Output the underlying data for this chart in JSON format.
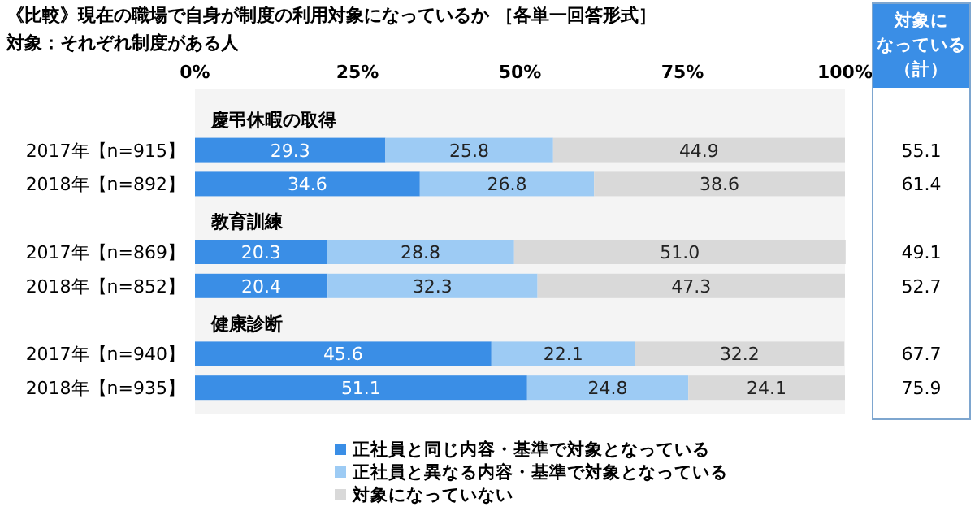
{
  "chart_data": [
    {
      "type": "bar",
      "orientation": "horizontal",
      "stacked": true,
      "title": "《比較》現在の職場で自身が制度の利用対象になっているか ［各単一回答形式］",
      "subtitle": "対象：それぞれ制度がある人",
      "categories": [
        "慶弔休暇の取得",
        "2017年【n=915】",
        "2018年【n=892】",
        "教育訓練",
        "2017年【n=869】",
        "2018年【n=852】",
        "健康診断",
        "2017年【n=940】",
        "2018年【n=935】"
      ],
      "series": [
        {
          "name": "正社員と同じ内容・基準で対象となっている",
          "color": "#3a8ee6",
          "values": [
            null,
            29.3,
            34.6,
            null,
            20.3,
            20.4,
            null,
            45.6,
            51.1
          ],
          "value_labels": [
            null,
            "29.3",
            "34.6",
            null,
            "20.3",
            "20.4",
            null,
            "45.6",
            "51.1"
          ]
        },
        {
          "name": "正社員と異なる内容・基準で対象となっている",
          "color": "#9dcbf4",
          "values": [
            null,
            25.8,
            26.8,
            null,
            28.8,
            32.3,
            null,
            22.1,
            24.8
          ],
          "value_labels": [
            null,
            "25.8",
            "26.8",
            null,
            "28.8",
            "32.3",
            null,
            "22.1",
            "24.8"
          ]
        },
        {
          "name": "対象になっていない",
          "color": "#d9d9d9",
          "values": [
            null,
            44.9,
            38.6,
            null,
            51.0,
            47.3,
            null,
            32.2,
            24.1
          ],
          "value_labels": [
            null,
            "44.9",
            "38.6",
            null,
            "51.0",
            "47.3",
            null,
            "32.2",
            "24.1"
          ]
        }
      ],
      "xlim": [
        0,
        100
      ],
      "xticks": [
        {
          "value": 0,
          "label": "0%"
        },
        {
          "value": 25,
          "label": "25%"
        },
        {
          "value": 50,
          "label": "50%"
        },
        {
          "value": 75,
          "label": "75%"
        },
        {
          "value": 100,
          "label": "100%"
        }
      ],
      "legend": "bottom"
    },
    {
      "type": "other",
      "annotations": [
        "対象に",
        "なっている",
        "（計）"
      ],
      "categories": [
        null,
        null,
        null,
        null,
        null,
        null,
        null,
        null,
        null
      ],
      "values": [
        null,
        55.1,
        61.4,
        null,
        49.1,
        52.7,
        null,
        67.7,
        75.9
      ],
      "data_labels": true
    }
  ]
}
